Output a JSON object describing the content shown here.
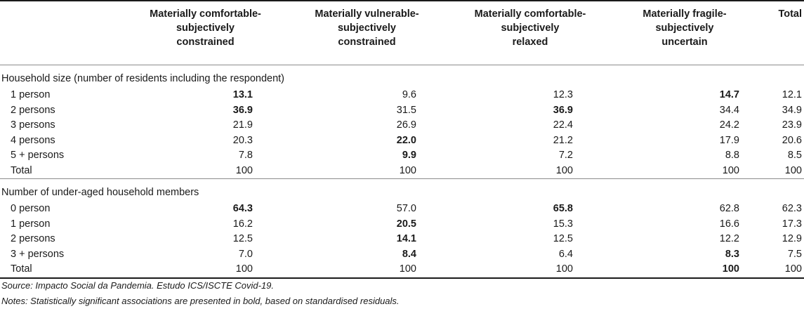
{
  "header": {
    "col1": [
      "Materially comfortable-",
      "subjectively",
      "constrained"
    ],
    "col2": [
      "Materially vulnerable-",
      "subjectively",
      "constrained"
    ],
    "col3": [
      "Materially comfortable-",
      "subjectively",
      "relaxed"
    ],
    "col4": [
      "Materially fragile-",
      "subjectively",
      "uncertain"
    ],
    "col5": "Total"
  },
  "sections": [
    {
      "title": "Household size (number of residents including the respondent)",
      "rows": [
        {
          "label": "1 person",
          "values": [
            "13.1",
            "9.6",
            "12.3",
            "14.7",
            "12.1"
          ],
          "bold": [
            true,
            false,
            false,
            true,
            false
          ]
        },
        {
          "label": "2 persons",
          "values": [
            "36.9",
            "31.5",
            "36.9",
            "34.4",
            "34.9"
          ],
          "bold": [
            true,
            false,
            true,
            false,
            false
          ]
        },
        {
          "label": "3 persons",
          "values": [
            "21.9",
            "26.9",
            "22.4",
            "24.2",
            "23.9"
          ],
          "bold": [
            false,
            false,
            false,
            false,
            false
          ]
        },
        {
          "label": "4 persons",
          "values": [
            "20.3",
            "22.0",
            "21.2",
            "17.9",
            "20.6"
          ],
          "bold": [
            false,
            true,
            false,
            false,
            false
          ]
        },
        {
          "label": "5 + persons",
          "values": [
            "7.8",
            "9.9",
            "7.2",
            "8.8",
            "8.5"
          ],
          "bold": [
            false,
            true,
            false,
            false,
            false
          ]
        },
        {
          "label": "Total",
          "values": [
            "100",
            "100",
            "100",
            "100",
            "100"
          ],
          "bold": [
            false,
            false,
            false,
            false,
            false
          ]
        }
      ]
    },
    {
      "title": "Number of under-aged household members",
      "rows": [
        {
          "label": "0 person",
          "values": [
            "64.3",
            "57.0",
            "65.8",
            "62.8",
            "62.3"
          ],
          "bold": [
            true,
            false,
            true,
            false,
            false
          ]
        },
        {
          "label": "1 person",
          "values": [
            "16.2",
            "20.5",
            "15.3",
            "16.6",
            "17.3"
          ],
          "bold": [
            false,
            true,
            false,
            false,
            false
          ]
        },
        {
          "label": "2 persons",
          "values": [
            "12.5",
            "14.1",
            "12.5",
            "12.2",
            "12.9"
          ],
          "bold": [
            false,
            true,
            false,
            false,
            false
          ]
        },
        {
          "label": "3 + persons",
          "values": [
            "7.0",
            "8.4",
            "6.4",
            "8.3",
            "7.5"
          ],
          "bold": [
            false,
            true,
            false,
            true,
            false
          ]
        },
        {
          "label": "Total",
          "values": [
            "100",
            "100",
            "100",
            "100",
            "100"
          ],
          "bold": [
            false,
            false,
            false,
            true,
            false
          ]
        }
      ]
    }
  ],
  "notes": {
    "source": "Source: Impacto Social da Pandemia. Estudo ICS/ISCTE Covid-19.",
    "notes": "Notes: Statistically significant associations are presented in bold, based on standardised residuals."
  }
}
